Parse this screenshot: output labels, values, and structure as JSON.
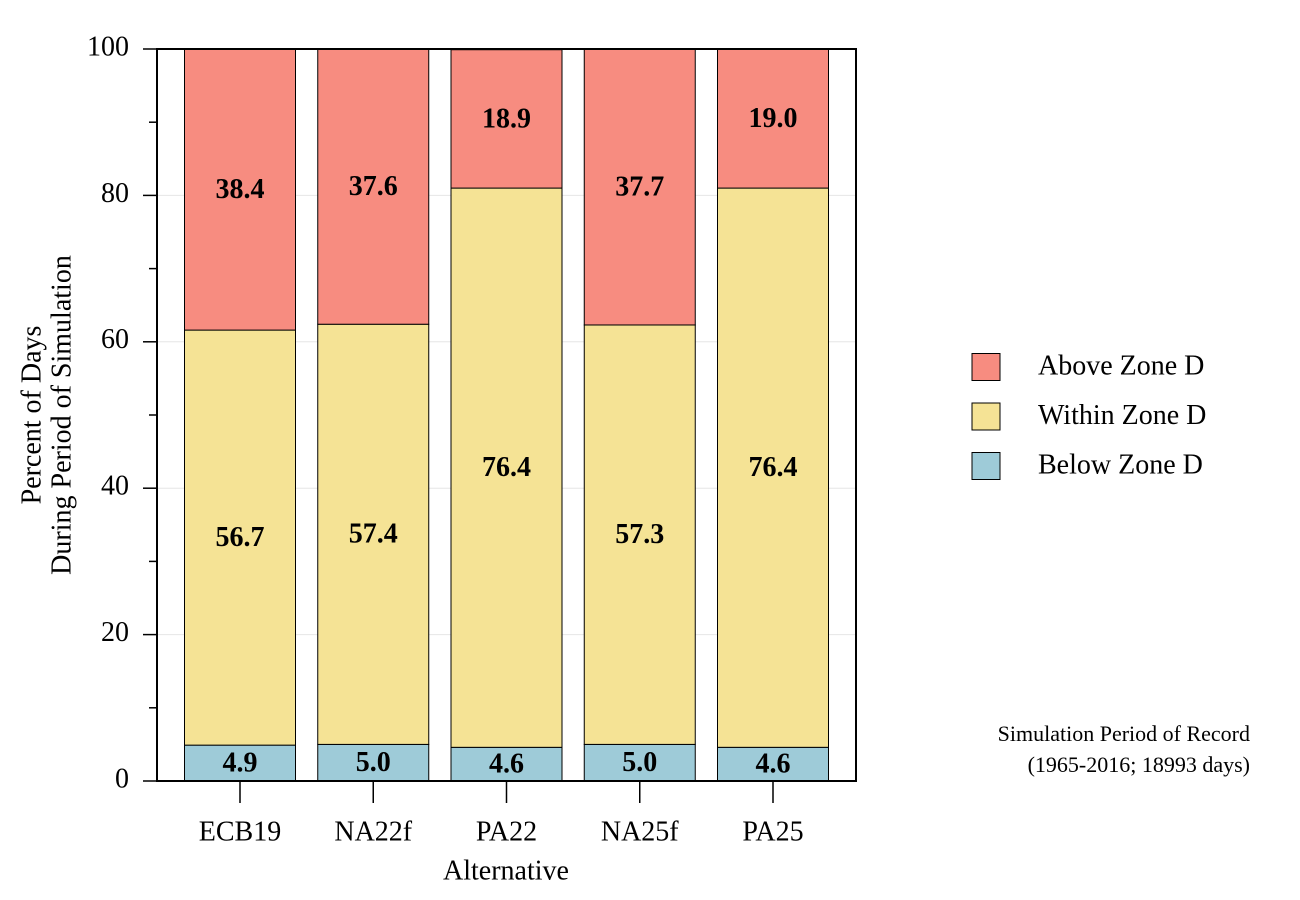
{
  "chart_data": {
    "type": "stacked_bar",
    "x_label": "Alternative",
    "y_label": [
      "Percent of Days",
      "During Period of Simulation"
    ],
    "categories": [
      "ECB19",
      "NA22f",
      "PA22",
      "NA25f",
      "PA25"
    ],
    "series": [
      {
        "name": "Below Zone D",
        "color": "#9ecbd8",
        "values": [
          4.9,
          5.0,
          4.6,
          5.0,
          4.6
        ],
        "value_labels": [
          "4.9",
          "5.0",
          "4.6",
          "5.0",
          "4.6"
        ]
      },
      {
        "name": "Within Zone D",
        "color": "#f5e395",
        "values": [
          56.7,
          57.4,
          76.4,
          57.3,
          76.4
        ],
        "value_labels": [
          "56.7",
          "57.4",
          "76.4",
          "57.3",
          "76.4"
        ]
      },
      {
        "name": "Above Zone D",
        "color": "#f78c80",
        "values": [
          38.4,
          37.6,
          18.9,
          37.7,
          19.0
        ],
        "value_labels": [
          "38.4",
          "37.6",
          "18.9",
          "37.7",
          "19.0"
        ]
      }
    ],
    "ylim": [
      0,
      100
    ],
    "yticks": [
      0,
      20,
      40,
      60,
      80,
      100
    ],
    "yticks_minor": [
      10,
      30,
      50,
      70,
      90
    ],
    "grid": true,
    "annotation": [
      "Simulation Period of Record",
      "(1965-2016; 18993 days)"
    ]
  }
}
